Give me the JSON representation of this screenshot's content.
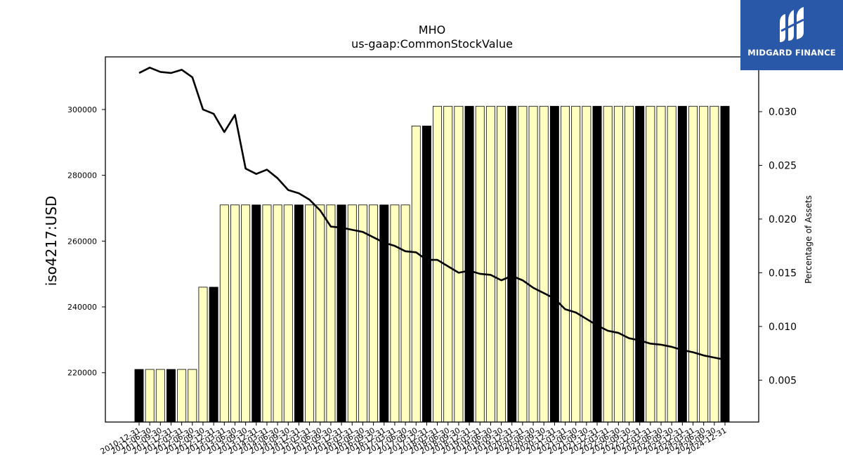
{
  "chart_data": {
    "type": "bar",
    "title": "MHO",
    "subtitle": "us-gaap:CommonStockValue",
    "ylabel": "iso4217:USD",
    "ylabel_right": "Percentage of Assets",
    "ylim": [
      205000,
      316000
    ],
    "ylim_right": [
      0.0011,
      0.0351
    ],
    "yticks": [
      220000,
      240000,
      260000,
      280000,
      300000
    ],
    "yticks_right": [
      0.005,
      0.01,
      0.015,
      0.02,
      0.025,
      0.03
    ],
    "yticks_right_labels": [
      "0.005",
      "0.010",
      "0.015",
      "0.020",
      "0.025",
      "0.030"
    ],
    "colors": {
      "bar_light": "#ffffc0",
      "bar_dark": "#000000",
      "line": "#000000"
    },
    "categories": [
      "2010-12-31",
      "2011-06-30",
      "2011-09-30",
      "2011-12-31",
      "2012-03-31",
      "2012-06-30",
      "2012-09-30",
      "2012-12-31",
      "2013-03-31",
      "2013-06-30",
      "2013-09-30",
      "2013-12-31",
      "2014-03-31",
      "2014-06-30",
      "2014-09-30",
      "2014-12-31",
      "2015-03-31",
      "2015-06-30",
      "2015-09-30",
      "2015-12-31",
      "2016-03-31",
      "2016-06-30",
      "2016-09-30",
      "2016-12-31",
      "2017-03-31",
      "2017-06-30",
      "2017-09-30",
      "2017-12-31",
      "2018-03-31",
      "2018-06-30",
      "2018-09-30",
      "2018-12-31",
      "2019-03-31",
      "2019-06-30",
      "2019-09-30",
      "2019-12-31",
      "2020-03-31",
      "2020-06-30",
      "2020-09-30",
      "2020-12-31",
      "2021-03-31",
      "2021-06-30",
      "2021-09-30",
      "2021-12-31",
      "2022-03-31",
      "2022-06-30",
      "2022-09-30",
      "2022-12-31",
      "2023-03-31",
      "2023-06-30",
      "2023-09-30",
      "2023-12-31",
      "2024-03-31",
      "2024-06-30",
      "2024-09-30",
      "2024-12-31"
    ],
    "series": [
      {
        "type": "bar",
        "values": [
          221000,
          221000,
          221000,
          221000,
          221000,
          221000,
          246000,
          246000,
          271000,
          271000,
          271000,
          271000,
          271000,
          271000,
          271000,
          271000,
          271000,
          271000,
          271000,
          271000,
          271000,
          271000,
          271000,
          271000,
          271000,
          271000,
          295000,
          295000,
          301000,
          301000,
          301000,
          301000,
          301000,
          301000,
          301000,
          301000,
          301000,
          301000,
          301000,
          301000,
          301000,
          301000,
          301000,
          301000,
          301000,
          301000,
          301000,
          301000,
          301000,
          301000,
          301000,
          301000,
          301000,
          301000,
          301000,
          301000
        ],
        "dark": [
          true,
          false,
          false,
          true,
          false,
          false,
          false,
          true,
          false,
          false,
          false,
          true,
          false,
          false,
          false,
          true,
          false,
          false,
          false,
          true,
          false,
          false,
          false,
          true,
          false,
          false,
          false,
          true,
          false,
          false,
          false,
          true,
          false,
          false,
          false,
          true,
          false,
          false,
          false,
          true,
          false,
          false,
          false,
          true,
          false,
          false,
          false,
          true,
          false,
          false,
          false,
          true,
          false,
          false,
          false,
          true
        ]
      },
      {
        "type": "line",
        "axis": "right",
        "values": [
          0.0336,
          0.0341,
          0.0337,
          0.0336,
          0.0339,
          0.0332,
          0.0302,
          0.0298,
          0.0281,
          0.0297,
          0.0247,
          0.0242,
          0.0246,
          0.0238,
          0.0227,
          0.0224,
          0.0218,
          0.0208,
          0.0193,
          0.0192,
          0.019,
          0.0188,
          0.0183,
          0.0178,
          0.0175,
          0.017,
          0.0169,
          0.0162,
          0.0162,
          0.0156,
          0.015,
          0.0152,
          0.0149,
          0.0148,
          0.0143,
          0.0147,
          0.0143,
          0.0136,
          0.0131,
          0.0126,
          0.0116,
          0.0113,
          0.0107,
          0.0101,
          0.0096,
          0.0094,
          0.0089,
          0.0087,
          0.0084,
          0.0083,
          0.0081,
          0.0078,
          0.0076,
          0.0073,
          0.0071,
          0.0069
        ]
      }
    ]
  },
  "logo": {
    "text": "MIDGARD FINANCE"
  }
}
